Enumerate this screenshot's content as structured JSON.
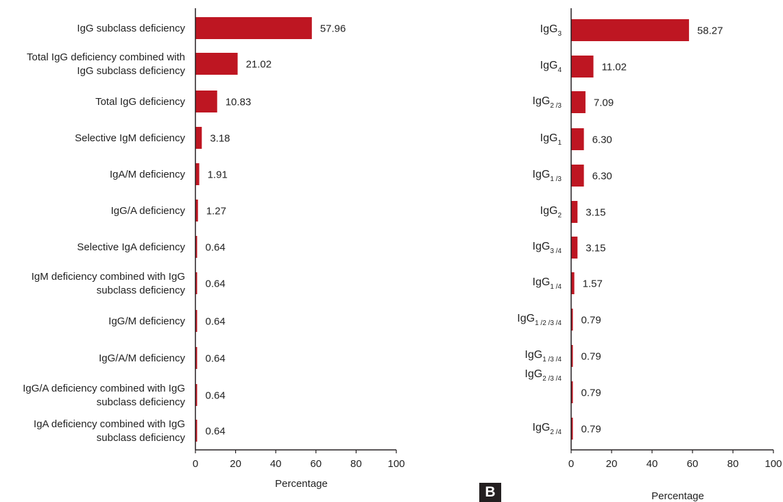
{
  "panel_label": "B",
  "colors": {
    "bar": "#be1622",
    "axis": "#231f20",
    "text": "#222222"
  },
  "chart_data": [
    {
      "type": "bar",
      "orientation": "horizontal",
      "title": "",
      "xlabel": "Percentage",
      "xlim": [
        0,
        100
      ],
      "xticks": [
        "0",
        "20",
        "40",
        "60",
        "80",
        "100"
      ],
      "grid": false,
      "categories": [
        [
          "IgG subclass deficiency"
        ],
        [
          "Total IgG deficiency combined with",
          "IgG subclass deficiency"
        ],
        [
          "Total IgG deficiency"
        ],
        [
          "Selective IgM deficiency"
        ],
        [
          "IgA/M deficiency"
        ],
        [
          "IgG/A deficiency"
        ],
        [
          "Selective IgA deficiency"
        ],
        [
          "IgM deficiency combined with IgG",
          "subclass deficiency"
        ],
        [
          "IgG/M deficiency"
        ],
        [
          "IgG/A/M deficiency"
        ],
        [
          "IgG/A deficiency combined with IgG",
          "subclass deficiency"
        ],
        [
          "IgA deficiency combined with IgG",
          "subclass deficiency"
        ]
      ],
      "values": [
        57.96,
        21.02,
        10.83,
        3.18,
        1.91,
        1.27,
        0.64,
        0.64,
        0.64,
        0.64,
        0.64,
        0.64
      ],
      "value_labels": [
        "57.96",
        "21.02",
        "10.83",
        "3.18",
        "1.91",
        "1.27",
        "0.64",
        "0.64",
        "0.64",
        "0.64",
        "0.64",
        "0.64"
      ]
    },
    {
      "type": "bar",
      "orientation": "horizontal",
      "title": "",
      "xlabel": "Percentage",
      "xlim": [
        0,
        100
      ],
      "xticks": [
        "0",
        "20",
        "40",
        "60",
        "80",
        "100"
      ],
      "grid": false,
      "categories": [
        {
          "base": "IgG",
          "sub": "3"
        },
        {
          "base": "IgG",
          "sub": "4"
        },
        {
          "base": "IgG",
          "sub": "2 /3"
        },
        {
          "base": "IgG",
          "sub": "1"
        },
        {
          "base": "IgG",
          "sub": "1 /3"
        },
        {
          "base": "IgG",
          "sub": "2"
        },
        {
          "base": "IgG",
          "sub": "3 /4"
        },
        {
          "base": "IgG",
          "sub": "1 /4"
        },
        {
          "base": "IgG",
          "sub": "1 /2 /3 /4"
        },
        {
          "base": "IgG",
          "sub": "1 /3 /4"
        },
        {
          "base": "IgG",
          "sub": "2 /3 /4"
        },
        {
          "base": "IgG",
          "sub": "2 /4"
        }
      ],
      "values": [
        58.27,
        11.02,
        7.09,
        6.3,
        6.3,
        3.15,
        3.15,
        1.57,
        0.79,
        0.79,
        0.79,
        0.79
      ],
      "value_labels": [
        "58.27",
        "11.02",
        "7.09",
        "6.30",
        "6.30",
        "3.15",
        "3.15",
        "1.57",
        "0.79",
        "0.79",
        "0.79",
        "0.79"
      ]
    }
  ]
}
